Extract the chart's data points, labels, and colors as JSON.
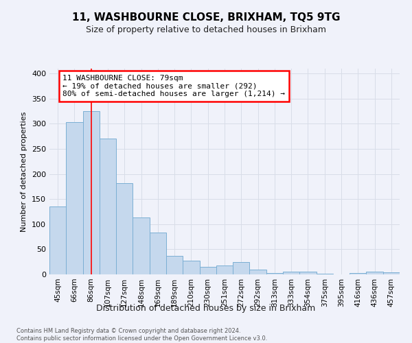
{
  "title": "11, WASHBOURNE CLOSE, BRIXHAM, TQ5 9TG",
  "subtitle": "Size of property relative to detached houses in Brixham",
  "xlabel": "Distribution of detached houses by size in Brixham",
  "ylabel": "Number of detached properties",
  "categories": [
    "45sqm",
    "66sqm",
    "86sqm",
    "107sqm",
    "127sqm",
    "148sqm",
    "169sqm",
    "189sqm",
    "210sqm",
    "230sqm",
    "251sqm",
    "272sqm",
    "292sqm",
    "313sqm",
    "333sqm",
    "354sqm",
    "375sqm",
    "395sqm",
    "416sqm",
    "436sqm",
    "457sqm"
  ],
  "values": [
    135,
    303,
    325,
    270,
    182,
    113,
    83,
    37,
    28,
    15,
    18,
    25,
    10,
    3,
    5,
    6,
    1,
    0,
    3,
    5,
    4
  ],
  "bar_color": "#c5d8ed",
  "bar_edge_color": "#7bafd4",
  "grid_color": "#d8dde8",
  "background_color": "#f0f2fa",
  "red_line_x": 2.0,
  "annotation_text": "11 WASHBOURNE CLOSE: 79sqm\n← 19% of detached houses are smaller (292)\n80% of semi-detached houses are larger (1,214) →",
  "footer_line1": "Contains HM Land Registry data © Crown copyright and database right 2024.",
  "footer_line2": "Contains public sector information licensed under the Open Government Licence v3.0.",
  "ylim": [
    0,
    410
  ],
  "yticks": [
    0,
    50,
    100,
    150,
    200,
    250,
    300,
    350,
    400
  ]
}
